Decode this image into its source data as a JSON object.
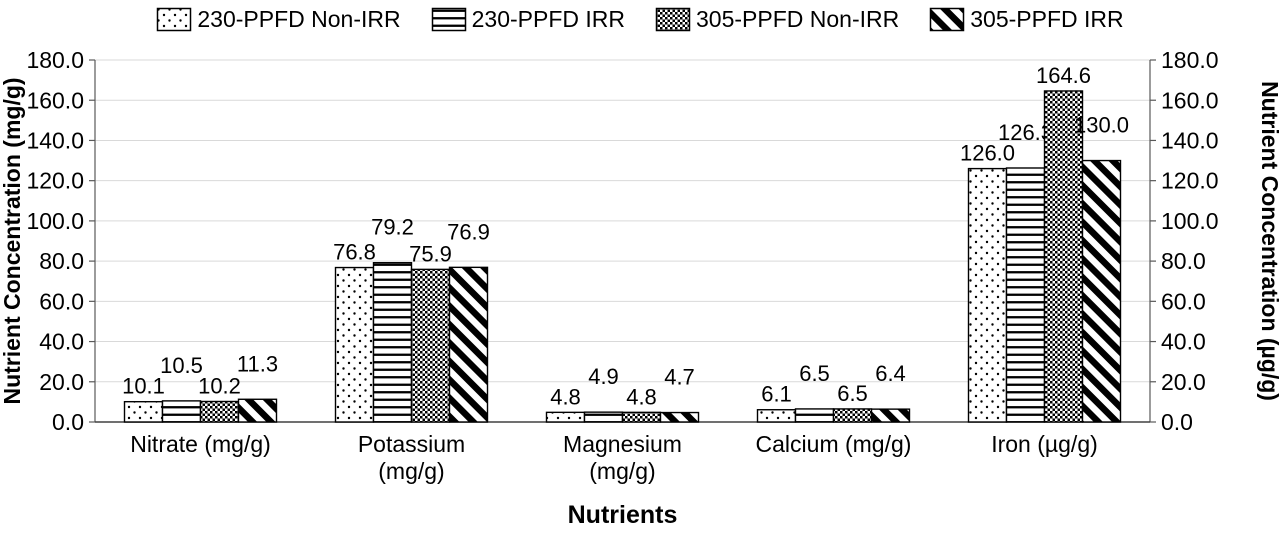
{
  "chart_data": {
    "type": "bar",
    "title": "",
    "xlabel": "Nutrients",
    "ylabel_left": "Nutrient Concentration (mg/g)",
    "ylabel_right": "Nutrient Concentration (µg/g)",
    "ylim": [
      0,
      180
    ],
    "ytick_step": 20,
    "grid": true,
    "legend_position": "top",
    "categories": [
      "Nitrate (mg/g)",
      "Potassium (mg/g)",
      "Magnesium (mg/g)",
      "Calcium (mg/g)",
      "Iron (µg/g)"
    ],
    "series": [
      {
        "name": "230-PPFD Non-IRR",
        "pattern": "dots",
        "values": [
          10.1,
          76.8,
          4.8,
          6.1,
          126.0
        ]
      },
      {
        "name": "230-PPFD IRR",
        "pattern": "hlines",
        "values": [
          10.5,
          79.2,
          4.9,
          6.5,
          126.3
        ]
      },
      {
        "name": "305-PPFD Non-IRR",
        "pattern": "checker",
        "values": [
          10.2,
          75.9,
          4.8,
          6.5,
          164.6
        ]
      },
      {
        "name": "305-PPFD IRR",
        "pattern": "diag",
        "values": [
          11.3,
          76.9,
          4.7,
          6.4,
          130.0
        ]
      }
    ],
    "colors": {
      "bar_outline": "#000000",
      "gridline": "#d9d9d9",
      "axis": "#595959",
      "text": "#000000",
      "background": "#ffffff"
    }
  }
}
